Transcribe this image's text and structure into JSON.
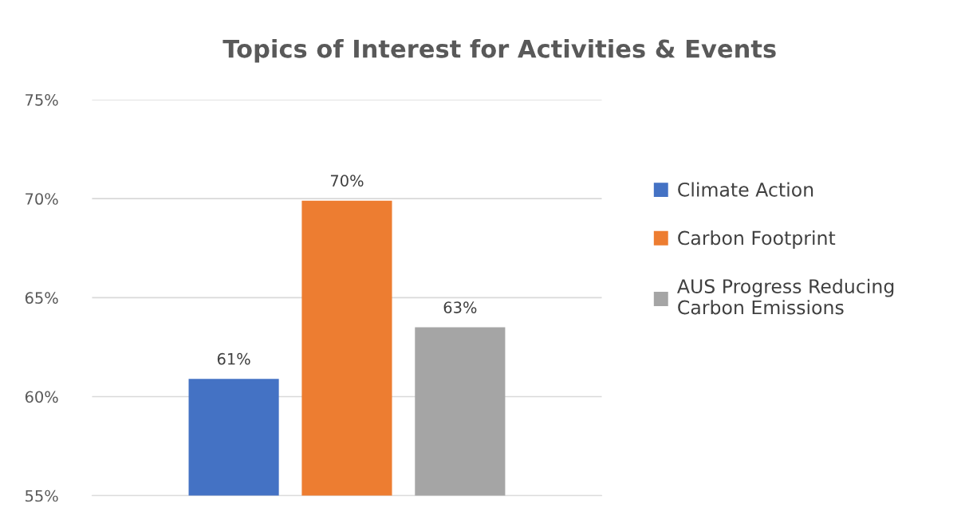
{
  "chart_data": {
    "type": "bar",
    "title": "Topics of Interest for Activities & Events",
    "categories": [
      null
    ],
    "series": [
      {
        "name": "Climate Action",
        "color": "#4472c4",
        "values": [
          60.9
        ],
        "value_labels": [
          "61%"
        ]
      },
      {
        "name": "Carbon Footprint",
        "color": "#ed7d31",
        "values": [
          69.9
        ],
        "value_labels": [
          "70%"
        ]
      },
      {
        "name": "AUS Progress Reducing\nCarbon Emissions",
        "color": "#a5a5a5",
        "values": [
          63.5
        ],
        "value_labels": [
          "63%"
        ]
      }
    ],
    "ylim": [
      55,
      75
    ],
    "yticks": [
      {
        "value": 55,
        "label": "55%"
      },
      {
        "value": 60,
        "label": "60%"
      },
      {
        "value": 65,
        "label": "65%"
      },
      {
        "value": 70,
        "label": "70%"
      },
      {
        "value": 75,
        "label": "75%"
      }
    ],
    "grid": "y",
    "legend": "right"
  }
}
